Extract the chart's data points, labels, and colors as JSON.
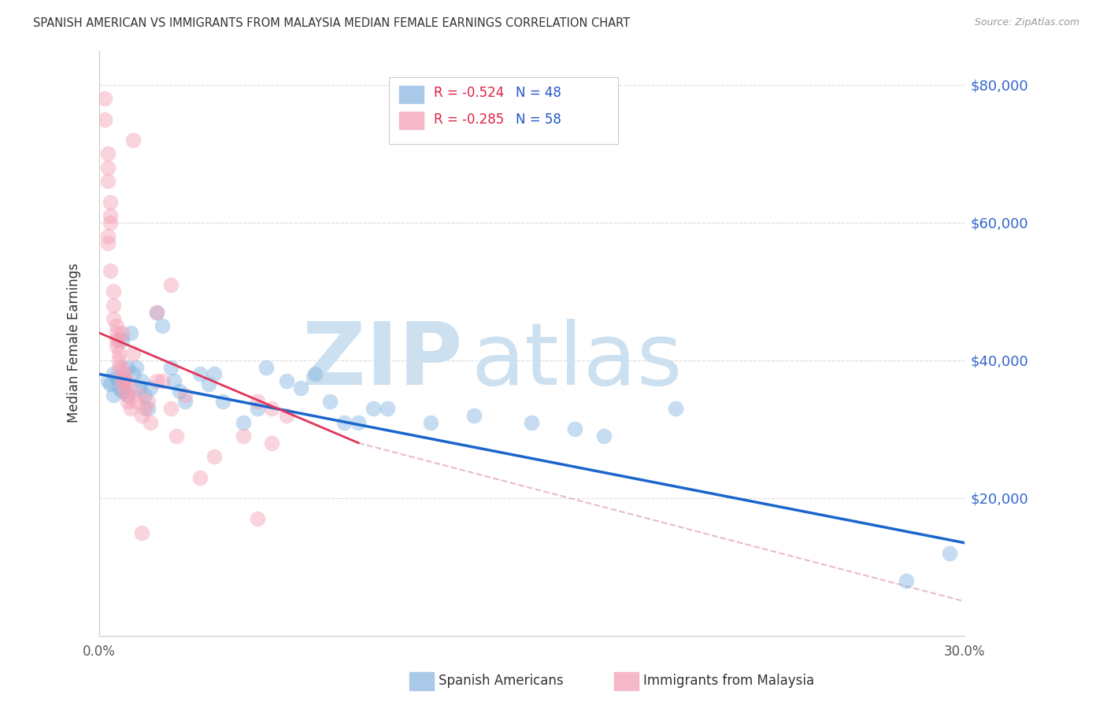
{
  "title": "SPANISH AMERICAN VS IMMIGRANTS FROM MALAYSIA MEDIAN FEMALE EARNINGS CORRELATION CHART",
  "source": "Source: ZipAtlas.com",
  "ylabel": "Median Female Earnings",
  "xlim": [
    0.0,
    0.3
  ],
  "ylim": [
    0,
    85000
  ],
  "yticks": [
    0,
    20000,
    40000,
    60000,
    80000
  ],
  "ytick_labels_right": [
    "",
    "$20,000",
    "$40,000",
    "$60,000",
    "$80,000"
  ],
  "xticks": [
    0.0,
    0.05,
    0.1,
    0.15,
    0.2,
    0.25,
    0.3
  ],
  "xtick_labels": [
    "0.0%",
    "",
    "",
    "",
    "",
    "",
    "30.0%"
  ],
  "blue_color": "#7fb3e0",
  "pink_color": "#f4a0b5",
  "blue_line_color": "#1a66cc",
  "pink_line_color": "#e0365a",
  "dashed_line_color": "#e0a0b0",
  "background_color": "#ffffff",
  "grid_color": "#cccccc",
  "blue_line": [
    [
      0.0,
      38000
    ],
    [
      0.3,
      13500
    ]
  ],
  "pink_line": [
    [
      0.0,
      44000
    ],
    [
      0.09,
      28000
    ]
  ],
  "dashed_line": [
    [
      0.09,
      28000
    ],
    [
      0.3,
      5000
    ]
  ],
  "blue_scatter": [
    [
      0.003,
      37000
    ],
    [
      0.004,
      36500
    ],
    [
      0.005,
      38000
    ],
    [
      0.005,
      35000
    ],
    [
      0.006,
      37500
    ],
    [
      0.007,
      36000
    ],
    [
      0.008,
      43000
    ],
    [
      0.008,
      35500
    ],
    [
      0.009,
      37000
    ],
    [
      0.01,
      35000
    ],
    [
      0.01,
      39000
    ],
    [
      0.011,
      44000
    ],
    [
      0.012,
      38000
    ],
    [
      0.013,
      39000
    ],
    [
      0.014,
      36000
    ],
    [
      0.015,
      37000
    ],
    [
      0.016,
      35000
    ],
    [
      0.017,
      33000
    ],
    [
      0.018,
      36000
    ],
    [
      0.02,
      47000
    ],
    [
      0.022,
      45000
    ],
    [
      0.025,
      39000
    ],
    [
      0.026,
      37000
    ],
    [
      0.028,
      35500
    ],
    [
      0.03,
      34000
    ],
    [
      0.035,
      38000
    ],
    [
      0.038,
      36500
    ],
    [
      0.04,
      38000
    ],
    [
      0.043,
      34000
    ],
    [
      0.05,
      31000
    ],
    [
      0.055,
      33000
    ],
    [
      0.058,
      39000
    ],
    [
      0.065,
      37000
    ],
    [
      0.07,
      36000
    ],
    [
      0.075,
      38000
    ],
    [
      0.08,
      34000
    ],
    [
      0.085,
      31000
    ],
    [
      0.09,
      31000
    ],
    [
      0.095,
      33000
    ],
    [
      0.1,
      33000
    ],
    [
      0.115,
      31000
    ],
    [
      0.13,
      32000
    ],
    [
      0.15,
      31000
    ],
    [
      0.165,
      30000
    ],
    [
      0.175,
      29000
    ],
    [
      0.2,
      33000
    ],
    [
      0.28,
      8000
    ],
    [
      0.295,
      12000
    ]
  ],
  "pink_scatter": [
    [
      0.002,
      75000
    ],
    [
      0.003,
      70000
    ],
    [
      0.003,
      66000
    ],
    [
      0.004,
      63000
    ],
    [
      0.004,
      60000
    ],
    [
      0.003,
      57000
    ],
    [
      0.004,
      53000
    ],
    [
      0.005,
      50000
    ],
    [
      0.005,
      48000
    ],
    [
      0.005,
      46000
    ],
    [
      0.006,
      45000
    ],
    [
      0.006,
      44000
    ],
    [
      0.006,
      43000
    ],
    [
      0.006,
      42000
    ],
    [
      0.007,
      43000
    ],
    [
      0.007,
      41000
    ],
    [
      0.007,
      40000
    ],
    [
      0.007,
      39000
    ],
    [
      0.008,
      44000
    ],
    [
      0.008,
      39000
    ],
    [
      0.008,
      37500
    ],
    [
      0.008,
      36500
    ],
    [
      0.009,
      38000
    ],
    [
      0.009,
      37000
    ],
    [
      0.009,
      35500
    ],
    [
      0.01,
      37000
    ],
    [
      0.01,
      35000
    ],
    [
      0.01,
      34000
    ],
    [
      0.011,
      36000
    ],
    [
      0.011,
      33000
    ],
    [
      0.012,
      41000
    ],
    [
      0.013,
      34000
    ],
    [
      0.014,
      35000
    ],
    [
      0.015,
      32000
    ],
    [
      0.016,
      33000
    ],
    [
      0.017,
      34000
    ],
    [
      0.018,
      31000
    ],
    [
      0.02,
      47000
    ],
    [
      0.02,
      37000
    ],
    [
      0.022,
      37000
    ],
    [
      0.025,
      33000
    ],
    [
      0.025,
      51000
    ],
    [
      0.027,
      29000
    ],
    [
      0.03,
      35000
    ],
    [
      0.035,
      23000
    ],
    [
      0.04,
      26000
    ],
    [
      0.05,
      29000
    ],
    [
      0.055,
      34000
    ],
    [
      0.06,
      28000
    ],
    [
      0.065,
      32000
    ],
    [
      0.002,
      78000
    ],
    [
      0.003,
      68000
    ],
    [
      0.004,
      61000
    ],
    [
      0.012,
      72000
    ],
    [
      0.015,
      15000
    ],
    [
      0.06,
      33000
    ],
    [
      0.003,
      58000
    ],
    [
      0.055,
      17000
    ]
  ]
}
